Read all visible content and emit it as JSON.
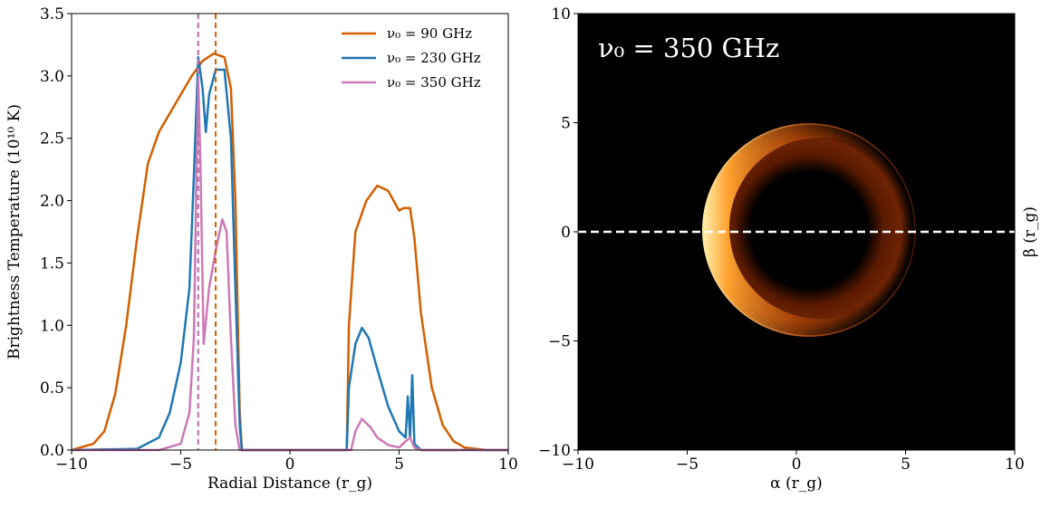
{
  "chart_data": [
    {
      "type": "line",
      "xlabel": "Radial Distance (r_g)",
      "ylabel": "Brightness Temperature (10¹⁰ K)",
      "xlim": [
        -10,
        10
      ],
      "ylim": [
        0,
        3.5
      ],
      "xticks": [
        {
          "value": -10,
          "label": "−10"
        },
        {
          "value": -5,
          "label": "−5"
        },
        0,
        5,
        10
      ],
      "yticks": [
        {
          "value": 0,
          "label": "0.0"
        },
        0.5,
        {
          "value": 1,
          "label": "1.0"
        },
        1.5,
        {
          "value": 2,
          "label": "2.0"
        },
        2.5,
        {
          "value": 3,
          "label": "3.0"
        },
        3.5
      ],
      "legend": "upper right",
      "series": [
        {
          "name": "ν₀ = 90 GHz",
          "color": "#d35f00",
          "x": [
            -10,
            -9,
            -8.5,
            -8,
            -7.5,
            -7,
            -6.5,
            -6,
            -5.5,
            -5,
            -4.5,
            -4,
            -3.5,
            -3,
            -2.7,
            -2.5,
            -2.3,
            -2.2,
            2.6,
            2.7,
            3,
            3.5,
            4,
            4.5,
            5,
            5.2,
            5.5,
            5.7,
            6,
            6.5,
            7,
            7.5,
            8,
            9,
            10
          ],
          "values": [
            0,
            0.05,
            0.15,
            0.45,
            1.0,
            1.7,
            2.3,
            2.55,
            2.7,
            2.85,
            3.0,
            3.12,
            3.18,
            3.15,
            2.9,
            2.0,
            0.3,
            0,
            0,
            1.0,
            1.75,
            2.0,
            2.12,
            2.08,
            1.92,
            1.94,
            1.94,
            1.7,
            1.1,
            0.5,
            0.2,
            0.07,
            0.02,
            0,
            0
          ]
        },
        {
          "name": "ν₀ = 230 GHz",
          "color": "#1f77b4",
          "x": [
            -10,
            -7,
            -6,
            -5.5,
            -5,
            -4.6,
            -4.4,
            -4.2,
            -4.0,
            -3.85,
            -3.7,
            -3.4,
            -3,
            -2.7,
            -2.5,
            -2.3,
            -2.2,
            2.6,
            2.7,
            3,
            3.3,
            3.6,
            4,
            4.5,
            5,
            5.3,
            5.4,
            5.5,
            5.6,
            5.7,
            6,
            10
          ],
          "values": [
            0,
            0.01,
            0.1,
            0.3,
            0.7,
            1.3,
            2.2,
            3.15,
            2.9,
            2.55,
            2.85,
            3.05,
            3.05,
            2.5,
            1.3,
            0.2,
            0,
            0,
            0.5,
            0.85,
            0.98,
            0.9,
            0.65,
            0.35,
            0.15,
            0.1,
            0.43,
            0.1,
            0.6,
            0.05,
            0,
            0
          ]
        },
        {
          "name": "ν₀ = 350 GHz",
          "color": "#cc79b5",
          "x": [
            -10,
            -6,
            -5,
            -4.6,
            -4.4,
            -4.3,
            -4.2,
            -4.1,
            -3.95,
            -3.7,
            -3.4,
            -3.1,
            -2.9,
            -2.7,
            -2.5,
            -2.3,
            2.8,
            3.0,
            3.3,
            3.7,
            4,
            4.5,
            5,
            5.3,
            5.5,
            5.7,
            6,
            10
          ],
          "values": [
            0,
            0,
            0.05,
            0.3,
            0.9,
            2.0,
            2.97,
            2.3,
            0.85,
            1.3,
            1.6,
            1.85,
            1.75,
            0.9,
            0.2,
            0,
            0,
            0.15,
            0.25,
            0.18,
            0.1,
            0.04,
            0.02,
            0.07,
            0.1,
            0.02,
            0,
            0
          ]
        }
      ],
      "vlines": [
        {
          "x": -4.2,
          "color": "#1f77b4"
        },
        {
          "x": -4.2,
          "color": "#cc79b5"
        },
        {
          "x": -3.4,
          "color": "#d35f00"
        }
      ]
    },
    {
      "type": "image",
      "title": "ν₀ = 350 GHz",
      "xlabel": "α (r_g)",
      "ylabel": "β (r_g)",
      "xlim": [
        -10,
        10
      ],
      "ylim": [
        -10,
        10
      ],
      "xticks": [
        {
          "value": -10,
          "label": "−10"
        },
        {
          "value": -5,
          "label": "−5"
        },
        0,
        5,
        10
      ],
      "yticks": [
        {
          "value": -10,
          "label": "−10"
        },
        {
          "value": -5,
          "label": "−5"
        },
        0,
        5,
        10
      ],
      "hline": 0
    }
  ]
}
